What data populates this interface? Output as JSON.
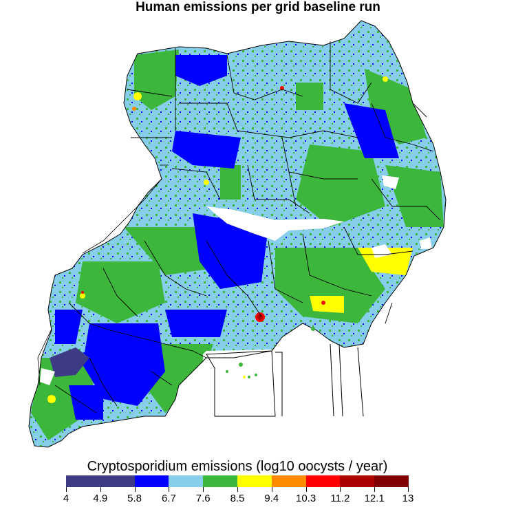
{
  "title": "Human emissions per grid baseline run",
  "legend": {
    "title": "Cryptosporidium emissions (log10 oocysts / year)",
    "breaks": [
      "4",
      "4.9",
      "5.8",
      "6.7",
      "7.6",
      "8.5",
      "9.4",
      "10.3",
      "11.2",
      "12.1",
      "13"
    ],
    "colors": [
      "#3d3b86",
      "#3d3b86",
      "#0000ff",
      "#87ceeb",
      "#3cb73c",
      "#ffff00",
      "#ff8c00",
      "#ff0000",
      "#aa0000",
      "#7f0000"
    ]
  },
  "map_colors": {
    "background": "#ffffff",
    "boundary": "#000000",
    "water": "#ffffff",
    "dominant_fill": "#87ceeb"
  }
}
